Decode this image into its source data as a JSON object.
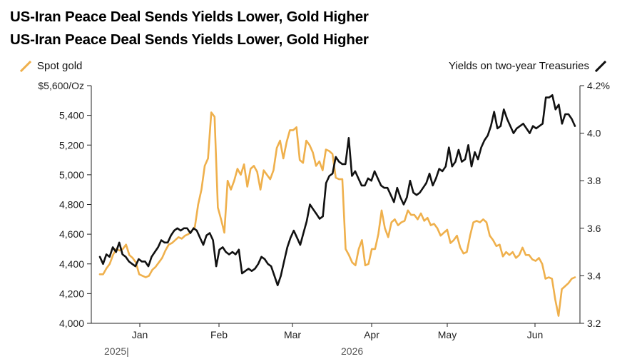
{
  "header": {
    "title": "US-Iran Peace Deal Sends Yields Lower, Gold Higher",
    "subtitle": "US-Iran Peace Deal Sends Yields Lower, Gold Higher"
  },
  "legend": {
    "left": "Spot gold",
    "right": "Yields on two-year Treasuries"
  },
  "colors": {
    "gold": "#EFB04C",
    "yield": "#111111",
    "axis": "#222222"
  },
  "chart_data": {
    "type": "line",
    "title": "US-Iran Peace Deal Sends Yields Lower, Gold Higher",
    "subtitle": "US-Iran Peace Deal Sends Yields Lower, Gold Higher",
    "x_ticks": [
      "Jan",
      "Feb",
      "Mar",
      "Apr",
      "May",
      "Jun"
    ],
    "year_labels": [
      "2025|",
      "2026"
    ],
    "left_axis": {
      "ticks": [
        "$5,600/Oz",
        "5,400",
        "5,200",
        "5,000",
        "4,800",
        "4,600",
        "4,400",
        "4,200",
        "4,000"
      ],
      "ylim": [
        4000,
        5600
      ]
    },
    "right_axis": {
      "ticks": [
        "4.2%",
        "4.0",
        "3.8",
        "3.6",
        "3.4",
        "3.2"
      ],
      "ylim": [
        3.2,
        4.2
      ]
    },
    "series": [
      {
        "name": "Spot gold",
        "axis": "left",
        "values": [
          4330,
          4330,
          4370,
          4400,
          4460,
          4500,
          4490,
          4500,
          4530,
          4460,
          4440,
          4410,
          4330,
          4320,
          4310,
          4320,
          4360,
          4380,
          4410,
          4440,
          4490,
          4530,
          4540,
          4560,
          4580,
          4570,
          4590,
          4600,
          4620,
          4650,
          4800,
          4900,
          5060,
          5110,
          5420,
          5390,
          4780,
          4700,
          4610,
          4960,
          4900,
          4960,
          5040,
          5000,
          5070,
          4920,
          5040,
          5060,
          5020,
          4900,
          5030,
          5000,
          4970,
          5030,
          5180,
          5230,
          5110,
          5220,
          5300,
          5300,
          5320,
          5100,
          5080,
          5230,
          5200,
          5150,
          5060,
          5090,
          5030,
          5170,
          5160,
          5140,
          4980,
          4970,
          4970,
          4500,
          4460,
          4410,
          4390,
          4500,
          4560,
          4390,
          4400,
          4500,
          4500,
          4600,
          4760,
          4640,
          4580,
          4680,
          4700,
          4660,
          4680,
          4690,
          4760,
          4730,
          4730,
          4700,
          4740,
          4690,
          4710,
          4660,
          4670,
          4640,
          4590,
          4610,
          4630,
          4540,
          4560,
          4590,
          4510,
          4470,
          4480,
          4590,
          4680,
          4690,
          4680,
          4700,
          4680,
          4590,
          4560,
          4520,
          4530,
          4450,
          4480,
          4460,
          4480,
          4440,
          4460,
          4510,
          4460,
          4460,
          4430,
          4420,
          4440,
          4400,
          4300,
          4310,
          4300,
          4160,
          4050,
          4230,
          4250,
          4270,
          4300,
          4310
        ]
      },
      {
        "name": "Yields on two-year Treasuries",
        "axis": "right",
        "values": [
          3.48,
          3.45,
          3.49,
          3.48,
          3.52,
          3.5,
          3.54,
          3.49,
          3.48,
          3.46,
          3.45,
          3.44,
          3.47,
          3.46,
          3.46,
          3.44,
          3.48,
          3.5,
          3.52,
          3.55,
          3.54,
          3.54,
          3.57,
          3.59,
          3.6,
          3.59,
          3.6,
          3.6,
          3.58,
          3.6,
          3.59,
          3.56,
          3.53,
          3.57,
          3.58,
          3.55,
          3.44,
          3.51,
          3.52,
          3.5,
          3.49,
          3.5,
          3.49,
          3.51,
          3.41,
          3.42,
          3.43,
          3.42,
          3.43,
          3.45,
          3.48,
          3.47,
          3.45,
          3.44,
          3.4,
          3.36,
          3.4,
          3.46,
          3.52,
          3.56,
          3.59,
          3.56,
          3.53,
          3.58,
          3.63,
          3.7,
          3.68,
          3.66,
          3.64,
          3.65,
          3.79,
          3.82,
          3.83,
          3.9,
          3.88,
          3.87,
          3.87,
          3.98,
          3.82,
          3.84,
          3.81,
          3.78,
          3.78,
          3.81,
          3.8,
          3.84,
          3.81,
          3.78,
          3.77,
          3.77,
          3.74,
          3.71,
          3.77,
          3.73,
          3.7,
          3.73,
          3.8,
          3.75,
          3.74,
          3.75,
          3.77,
          3.79,
          3.83,
          3.78,
          3.81,
          3.85,
          3.84,
          3.86,
          3.94,
          3.86,
          3.88,
          3.93,
          3.88,
          3.89,
          3.95,
          3.86,
          3.92,
          3.89,
          3.94,
          3.97,
          3.99,
          4.03,
          4.09,
          4.02,
          4.03,
          4.1,
          4.06,
          4.03,
          4.0,
          4.02,
          4.03,
          4.04,
          4.02,
          4.0,
          4.03,
          4.02,
          4.03,
          4.04,
          4.15,
          4.15,
          4.16,
          4.1,
          4.12,
          4.04,
          4.08,
          4.08,
          4.06,
          4.03
        ]
      }
    ]
  }
}
